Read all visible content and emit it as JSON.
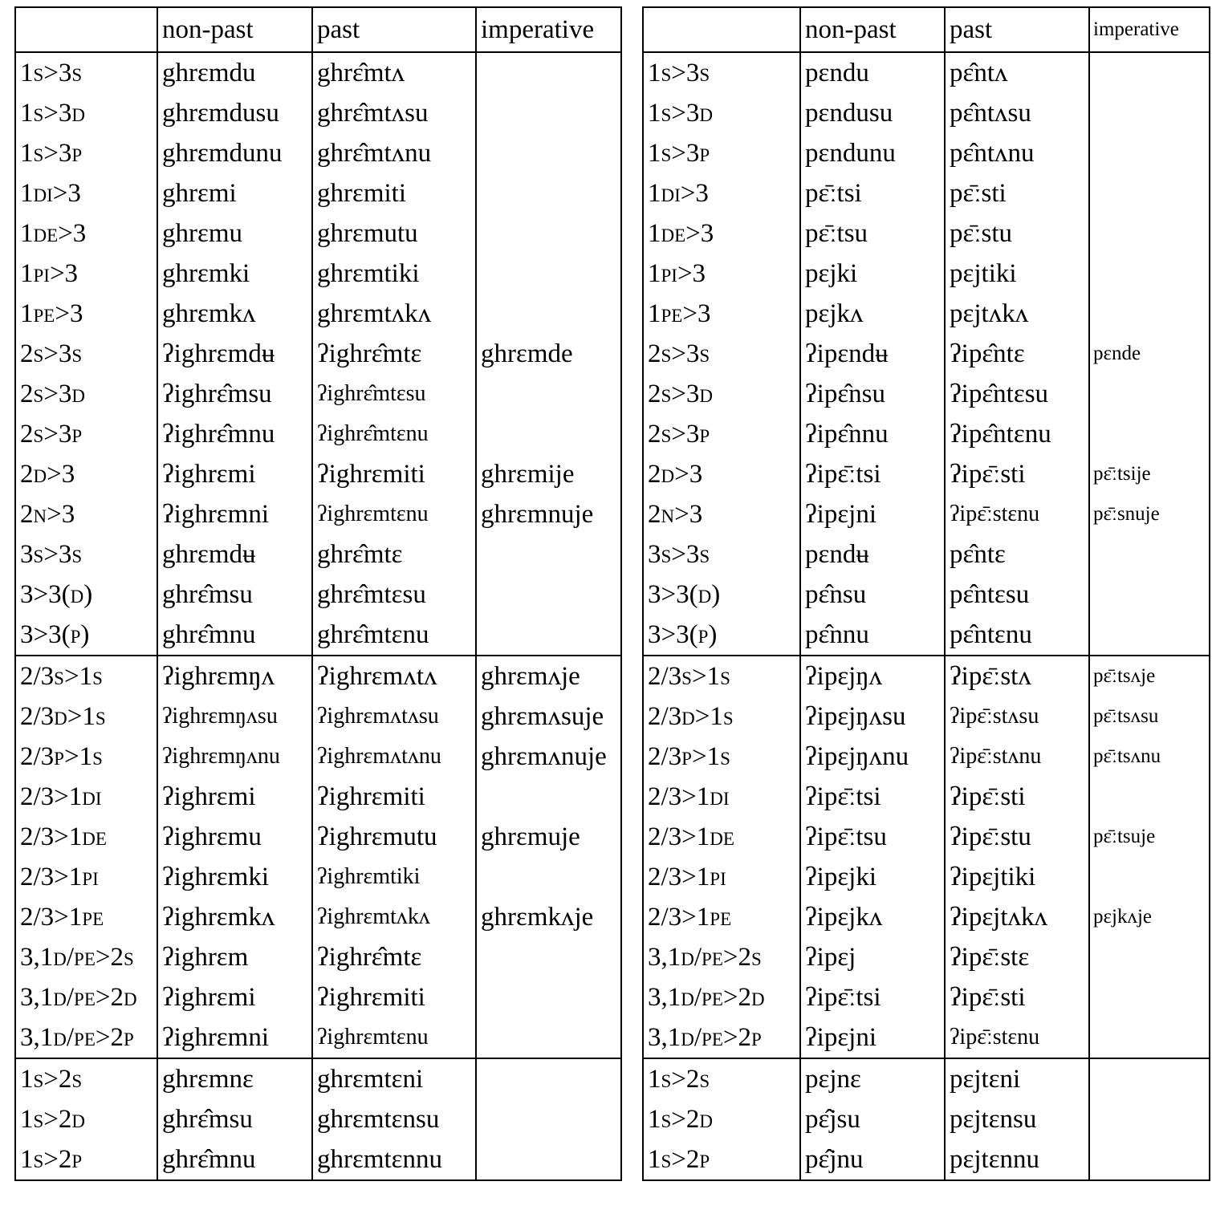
{
  "tables": [
    {
      "headers": [
        "",
        "non-past",
        "past",
        "imperative"
      ],
      "groups": [
        [
          [
            "1s>3s",
            "ghrɛmdu",
            "ghrɛ̂mtʌ",
            ""
          ],
          [
            "1s>3d",
            "ghrɛmdusu",
            "ghrɛ̂mtʌsu",
            ""
          ],
          [
            "1s>3p",
            "ghrɛmdunu",
            "ghrɛ̂mtʌnu",
            ""
          ],
          [
            "1di>3",
            "ghrɛmi",
            "ghrɛmiti",
            ""
          ],
          [
            "1de>3",
            "ghrɛmu",
            "ghrɛmutu",
            ""
          ],
          [
            "1pi>3",
            "ghrɛmki",
            "ghrɛmtiki",
            ""
          ],
          [
            "1pe>3",
            "ghrɛmkʌ",
            "ghrɛmtʌkʌ",
            ""
          ],
          [
            "2s>3s",
            "ʔighrɛmdʉ",
            "ʔighrɛ̂mtɛ",
            "ghrɛmde"
          ],
          [
            "2s>3d",
            "ʔighrɛ̂msu",
            "ʔighrɛ̂mtɛsu",
            ""
          ],
          [
            "2s>3p",
            "ʔighrɛ̂mnu",
            "ʔighrɛ̂mtɛnu",
            ""
          ],
          [
            "2d>3",
            "ʔighrɛmi",
            "ʔighrɛmiti",
            "ghrɛmije"
          ],
          [
            "2n>3",
            "ʔighrɛmni",
            "ʔighrɛmtɛnu",
            "ghrɛmnuje"
          ],
          [
            "3s>3s",
            "ghrɛmdʉ",
            "ghrɛ̂mtɛ",
            ""
          ],
          [
            "3>3(d)",
            "ghrɛ̂msu",
            "ghrɛ̂mtɛsu",
            ""
          ],
          [
            "3>3(p)",
            "ghrɛ̂mnu",
            "ghrɛ̂mtɛnu",
            ""
          ]
        ],
        [
          [
            "2/3s>1s",
            "ʔighrɛmŋʌ",
            "ʔighrɛmʌtʌ",
            "ghrɛmʌje"
          ],
          [
            "2/3d>1s",
            "ʔighrɛmŋʌsu",
            "ʔighrɛmʌtʌsu",
            "ghrɛmʌsuje"
          ],
          [
            "2/3p>1s",
            "ʔighrɛmŋʌnu",
            "ʔighrɛmʌtʌnu",
            "ghrɛmʌnuje"
          ],
          [
            "2/3>1di",
            "ʔighrɛmi",
            "ʔighrɛmiti",
            ""
          ],
          [
            "2/3>1de",
            "ʔighrɛmu",
            "ʔighrɛmutu",
            "ghrɛmuje"
          ],
          [
            "2/3>1pi",
            "ʔighrɛmki",
            "ʔighrɛmtiki",
            ""
          ],
          [
            "2/3>1pe",
            "ʔighrɛmkʌ",
            "ʔighrɛmtʌkʌ",
            "ghrɛmkʌje"
          ],
          [
            "3,1d/pe>2s",
            "ʔighrɛm",
            "ʔighrɛ̂mtɛ",
            ""
          ],
          [
            "3,1d/pe>2d",
            "ʔighrɛmi",
            "ʔighrɛmiti",
            ""
          ],
          [
            "3,1d/pe>2p",
            "ʔighrɛmni",
            "ʔighrɛmtɛnu",
            ""
          ]
        ],
        [
          [
            "1s>2s",
            "ghrɛmnɛ",
            "ghrɛmtɛni",
            ""
          ],
          [
            "1s>2d",
            "ghrɛ̂msu",
            "ghrɛmtɛnsu",
            ""
          ],
          [
            "1s>2p",
            "ghrɛ̂mnu",
            "ghrɛmtɛnnu",
            ""
          ]
        ]
      ]
    },
    {
      "headers": [
        "",
        "non-past",
        "past",
        "imperative"
      ],
      "groups": [
        [
          [
            "1s>3s",
            "pɛndu",
            "pɛ̂ntʌ",
            ""
          ],
          [
            "1s>3d",
            "pɛndusu",
            "pɛ̂ntʌsu",
            ""
          ],
          [
            "1s>3p",
            "pɛndunu",
            "pɛ̂ntʌnu",
            ""
          ],
          [
            "1di>3",
            "pɛ̄ːtsi",
            "pɛ̄ːsti",
            ""
          ],
          [
            "1de>3",
            "pɛ̄ːtsu",
            "pɛ̄ːstu",
            ""
          ],
          [
            "1pi>3",
            "pɛjki",
            "pɛjtiki",
            ""
          ],
          [
            "1pe>3",
            "pɛjkʌ",
            "pɛjtʌkʌ",
            ""
          ],
          [
            "2s>3s",
            "ʔipɛndʉ",
            "ʔipɛ̂ntɛ",
            "pɛnde"
          ],
          [
            "2s>3d",
            "ʔipɛ̂nsu",
            "ʔipɛ̂ntɛsu",
            ""
          ],
          [
            "2s>3p",
            "ʔipɛ̂nnu",
            "ʔipɛ̂ntɛnu",
            ""
          ],
          [
            "2d>3",
            "ʔipɛ̄ːtsi",
            "ʔipɛ̄ːsti",
            "pɛ̄ːtsije"
          ],
          [
            "2n>3",
            "ʔipɛjni",
            "ʔipɛ̄ːstɛnu",
            "pɛ̄ːsnuje"
          ],
          [
            "3s>3s",
            "pɛndʉ",
            "pɛ̂ntɛ",
            ""
          ],
          [
            "3>3(d)",
            "pɛ̂nsu",
            "pɛ̂ntɛsu",
            ""
          ],
          [
            "3>3(p)",
            "pɛ̂nnu",
            "pɛ̂ntɛnu",
            ""
          ]
        ],
        [
          [
            "2/3s>1s",
            "ʔipɛjŋʌ",
            "ʔipɛ̄ːstʌ",
            "pɛ̄ːtsʌje"
          ],
          [
            "2/3d>1s",
            "ʔipɛjŋʌsu",
            "ʔipɛ̄ːstʌsu",
            "pɛ̄ːtsʌsu"
          ],
          [
            "2/3p>1s",
            "ʔipɛjŋʌnu",
            "ʔipɛ̄ːstʌnu",
            "pɛ̄ːtsʌnu"
          ],
          [
            "2/3>1di",
            "ʔipɛ̄ːtsi",
            "ʔipɛ̄ːsti",
            ""
          ],
          [
            "2/3>1de",
            "ʔipɛ̄ːtsu",
            "ʔipɛ̄ːstu",
            "pɛ̄ːtsuje"
          ],
          [
            "2/3>1pi",
            "ʔipɛjki",
            "ʔipɛjtiki",
            ""
          ],
          [
            "2/3>1pe",
            "ʔipɛjkʌ",
            "ʔipɛjtʌkʌ",
            "pɛjkʌje"
          ],
          [
            "3,1d/pe>2s",
            "ʔipɛj",
            "ʔipɛ̄ːstɛ",
            ""
          ],
          [
            "3,1d/pe>2d",
            "ʔipɛ̄ːtsi",
            "ʔipɛ̄ːsti",
            ""
          ],
          [
            "3,1d/pe>2p",
            "ʔipɛjni",
            "ʔipɛ̄ːstɛnu",
            ""
          ]
        ],
        [
          [
            "1s>2s",
            "pɛjnɛ",
            "pɛjtɛni",
            ""
          ],
          [
            "1s>2d",
            "pɛ̂jsu",
            "pɛjtɛnsu",
            ""
          ],
          [
            "1s>2p",
            "pɛ̂jnu",
            "pɛjtɛnnu",
            ""
          ]
        ]
      ]
    }
  ]
}
